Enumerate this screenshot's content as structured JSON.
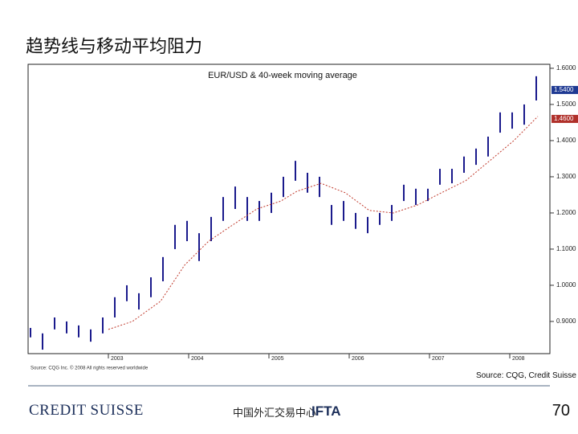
{
  "slide_title": "趋势线与移动平均阻力",
  "source": "Source: CQG, Credit Suisse",
  "page_number": "70",
  "logos": {
    "left": "CREDIT SUISSE",
    "center": "中国外汇交易中心",
    "right": "IFTA"
  },
  "chart_data": {
    "type": "range",
    "title": "EUR/USD & 40-week moving average",
    "footnote": "Source: CQG Inc. © 2008 All rights reserved worldwide",
    "color": "#1a1a8c",
    "ma_color": "#c0392b",
    "x": [
      2002.03,
      2002.18,
      2002.33,
      2002.48,
      2002.63,
      2002.78,
      2002.93,
      2003.08,
      2003.23,
      2003.38,
      2003.53,
      2003.68,
      2003.83,
      2003.98,
      2004.13,
      2004.28,
      2004.43,
      2004.58,
      2004.73,
      2004.88,
      2005.03,
      2005.18,
      2005.33,
      2005.48,
      2005.63,
      2005.78,
      2005.93,
      2006.08,
      2006.23,
      2006.38,
      2006.53,
      2006.68,
      2006.83,
      2006.98,
      2007.13,
      2007.28,
      2007.43,
      2007.58,
      2007.73,
      2007.88,
      2008.03,
      2008.18,
      2008.33
    ],
    "high": [
      0.882,
      0.867,
      0.911,
      0.9,
      0.889,
      0.878,
      0.911,
      0.967,
      1.0,
      0.978,
      1.022,
      1.078,
      1.167,
      1.178,
      1.144,
      1.189,
      1.244,
      1.273,
      1.244,
      1.233,
      1.256,
      1.3,
      1.344,
      1.311,
      1.3,
      1.222,
      1.233,
      1.2,
      1.189,
      1.2,
      1.222,
      1.278,
      1.267,
      1.267,
      1.322,
      1.322,
      1.356,
      1.378,
      1.411,
      1.478,
      1.478,
      1.5,
      1.578
    ],
    "low": [
      0.856,
      0.822,
      0.878,
      0.867,
      0.856,
      0.844,
      0.867,
      0.911,
      0.956,
      0.933,
      0.967,
      1.011,
      1.1,
      1.122,
      1.067,
      1.122,
      1.178,
      1.211,
      1.178,
      1.178,
      1.2,
      1.244,
      1.289,
      1.256,
      1.244,
      1.167,
      1.178,
      1.156,
      1.144,
      1.167,
      1.178,
      1.233,
      1.222,
      1.233,
      1.278,
      1.282,
      1.311,
      1.333,
      1.356,
      1.422,
      1.433,
      1.444,
      1.511
    ],
    "ma_x": [
      2003.0,
      2003.3,
      2003.65,
      2003.95,
      2004.25,
      2004.55,
      2004.85,
      2005.15,
      2005.35,
      2005.65,
      2005.95,
      2006.25,
      2006.55,
      2006.85,
      2007.15,
      2007.45,
      2007.75,
      2008.05,
      2008.35
    ],
    "ma_values": [
      0.878,
      0.9,
      0.956,
      1.056,
      1.122,
      1.167,
      1.211,
      1.233,
      1.26,
      1.282,
      1.256,
      1.207,
      1.2,
      1.222,
      1.256,
      1.289,
      1.344,
      1.4,
      1.467
    ],
    "xlim": [
      2002,
      2008.5
    ],
    "ylim": [
      0.811,
      1.611
    ],
    "xticks": [
      2003,
      2004,
      2005,
      2006,
      2007,
      2008
    ],
    "yticks": [
      {
        "value": 0.9,
        "label": "0.9000"
      },
      {
        "value": 1.0,
        "label": "1.0000"
      },
      {
        "value": 1.1,
        "label": "1.1000"
      },
      {
        "value": 1.2,
        "label": "1.2000"
      },
      {
        "value": 1.3,
        "label": "1.3000"
      },
      {
        "value": 1.4,
        "label": "1.4000"
      },
      {
        "value": 1.5,
        "label": "1.5000"
      },
      {
        "value": 1.6,
        "label": "1.6000"
      }
    ],
    "price_tags": [
      {
        "value": 1.54,
        "label": "1.5400",
        "color": "#1f3a93"
      },
      {
        "value": 1.46,
        "label": "1.4600",
        "color": "#b0302a"
      }
    ]
  }
}
